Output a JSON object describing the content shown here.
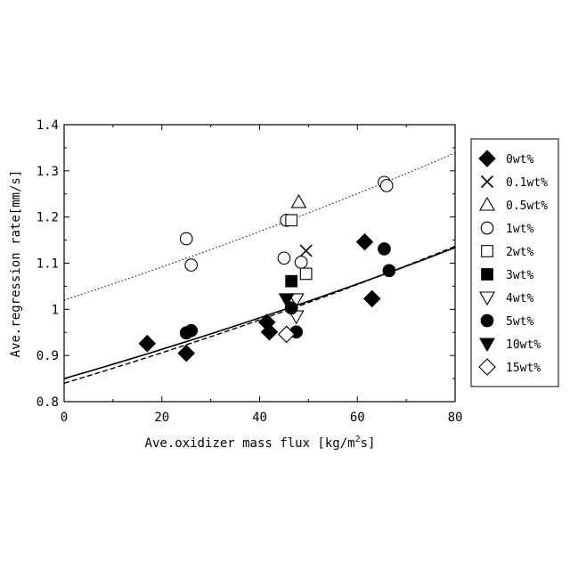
{
  "chart_data": {
    "type": "scatter",
    "xlabel_text": "Ave.oxidizer mass flux [kg/m",
    "xlabel_sup": "2",
    "xlabel_end": "s]",
    "ylabel": "Ave.regression rate[mm/s]",
    "xlim": [
      0,
      80
    ],
    "ylim": [
      0.8,
      1.4
    ],
    "xticks": [
      0,
      20,
      40,
      60,
      80
    ],
    "xtick_labels": [
      "0",
      "20",
      "40",
      "60",
      "80"
    ],
    "yticks": [
      0.8,
      0.9,
      1.0,
      1.1,
      1.2,
      1.3,
      1.4
    ],
    "ytick_labels": [
      "0.8",
      "0.9",
      "1",
      "1.1",
      "1.2",
      "1.3",
      "1.4"
    ],
    "grid": false,
    "legend_position": "right",
    "series": [
      {
        "name": "0wt%",
        "marker": "diamond-filled",
        "points": [
          [
            17,
            0.926
          ],
          [
            25,
            0.905
          ],
          [
            41.5,
            0.972
          ],
          [
            42,
            0.951
          ],
          [
            61.5,
            1.146
          ],
          [
            63,
            1.023
          ]
        ]
      },
      {
        "name": "0.1wt%",
        "marker": "x",
        "points": [
          [
            49.5,
            1.127
          ]
        ]
      },
      {
        "name": "0.5wt%",
        "marker": "triangle-up-open",
        "points": [
          [
            48,
            1.232
          ]
        ]
      },
      {
        "name": "1wt%",
        "marker": "circle-open",
        "points": [
          [
            25,
            1.153
          ],
          [
            26,
            1.096
          ],
          [
            45,
            1.111
          ],
          [
            45.5,
            1.193
          ],
          [
            48.5,
            1.102
          ],
          [
            65.5,
            1.275
          ],
          [
            66,
            1.268
          ]
        ]
      },
      {
        "name": "2wt%",
        "marker": "square-open",
        "points": [
          [
            46.5,
            1.193
          ],
          [
            49.5,
            1.077
          ]
        ]
      },
      {
        "name": "3wt%",
        "marker": "square-filled",
        "points": [
          [
            46.5,
            1.061
          ]
        ]
      },
      {
        "name": "4wt%",
        "marker": "triangle-down-open",
        "points": [
          [
            47.5,
            1.022
          ],
          [
            47.5,
            0.985
          ]
        ]
      },
      {
        "name": "5wt%",
        "marker": "circle-filled",
        "points": [
          [
            25,
            0.949
          ],
          [
            26,
            0.954
          ],
          [
            46.5,
            1.003
          ],
          [
            47.5,
            0.951
          ],
          [
            65.5,
            1.131
          ],
          [
            66.5,
            1.084
          ]
        ]
      },
      {
        "name": "10wt%",
        "marker": "triangle-down-filled",
        "points": [
          [
            45.5,
            1.022
          ]
        ]
      },
      {
        "name": "15wt%",
        "marker": "diamond-open",
        "points": [
          [
            45.5,
            0.946
          ]
        ]
      }
    ],
    "fit_lines": [
      {
        "style": "solid",
        "a": 0.85,
        "b": 0.0036
      },
      {
        "style": "dashed",
        "a": 0.84,
        "b": 0.00378
      },
      {
        "style": "dotted",
        "a": 1.02,
        "b": 0.0034
      }
    ]
  }
}
